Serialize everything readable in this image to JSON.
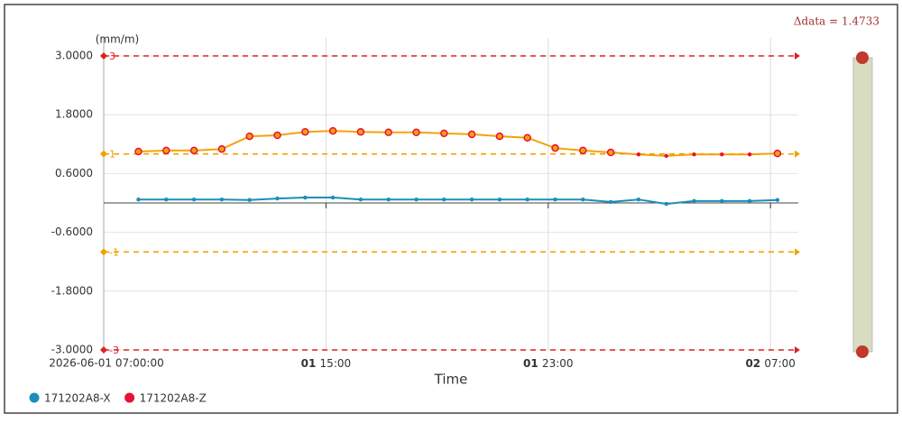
{
  "chart_data": {
    "type": "line",
    "y_unit": "(mm/m)",
    "x_label": "Time",
    "annotation": "Δdata = 1.4733",
    "xlim": [
      "2026-06-01 07:00",
      "2026-06-02 08:00"
    ],
    "xticks": [
      {
        "value": "2026-06-01 07:00",
        "label": "2026-06-01 07:00:00"
      },
      {
        "value": "2026-06-01 15:00",
        "label": "01 15:00"
      },
      {
        "value": "2026-06-01 23:00",
        "label": "01 23:00"
      },
      {
        "value": "2026-06-02 07:00",
        "label": "02 07:00"
      }
    ],
    "ylim": [
      -3,
      3
    ],
    "yticks": [
      {
        "value": 3,
        "label": "3.0000"
      },
      {
        "value": 1.8,
        "label": "1.8000"
      },
      {
        "value": 0.6,
        "label": "0.6000"
      },
      {
        "value": -0.6,
        "label": "-0.6000"
      },
      {
        "value": -1.8,
        "label": "-1.8000"
      },
      {
        "value": -3,
        "label": "-3.0000"
      }
    ],
    "grid": true,
    "thresholds": [
      {
        "value": 3,
        "color": "#e02020"
      },
      {
        "value": 1,
        "color": "#f0a000"
      },
      {
        "value": -1,
        "color": "#f0a000"
      },
      {
        "value": -3,
        "color": "#e02020"
      }
    ],
    "x": [
      "2026-06-01 08:15",
      "2026-06-01 09:15",
      "2026-06-01 10:15",
      "2026-06-01 11:15",
      "2026-06-01 12:15",
      "2026-06-01 13:15",
      "2026-06-01 14:15",
      "2026-06-01 15:15",
      "2026-06-01 16:15",
      "2026-06-01 17:15",
      "2026-06-01 18:15",
      "2026-06-01 19:15",
      "2026-06-01 20:15",
      "2026-06-01 21:15",
      "2026-06-01 22:15",
      "2026-06-01 23:15",
      "2026-06-02 00:15",
      "2026-06-02 01:15",
      "2026-06-02 02:15",
      "2026-06-02 03:15",
      "2026-06-02 04:15",
      "2026-06-02 05:15",
      "2026-06-02 06:15",
      "2026-06-02 07:15"
    ],
    "series": [
      {
        "name": "171202A8-X",
        "color": "#1a8fb8",
        "values": [
          0.07,
          0.07,
          0.07,
          0.07,
          0.06,
          0.09,
          0.11,
          0.11,
          0.07,
          0.07,
          0.07,
          0.07,
          0.07,
          0.07,
          0.07,
          0.07,
          0.07,
          0.02,
          0.07,
          -0.02,
          0.04,
          0.04,
          0.04,
          0.06
        ]
      },
      {
        "name": "171202A8-Z",
        "color": "#e8103a",
        "values": [
          1.05,
          1.07,
          1.07,
          1.1,
          1.36,
          1.38,
          1.45,
          1.47,
          1.45,
          1.44,
          1.44,
          1.42,
          1.4,
          1.36,
          1.33,
          1.12,
          1.07,
          1.03,
          0.99,
          0.96,
          0.99,
          0.99,
          0.99,
          1.01
        ]
      }
    ],
    "legend": "bottom-left"
  }
}
